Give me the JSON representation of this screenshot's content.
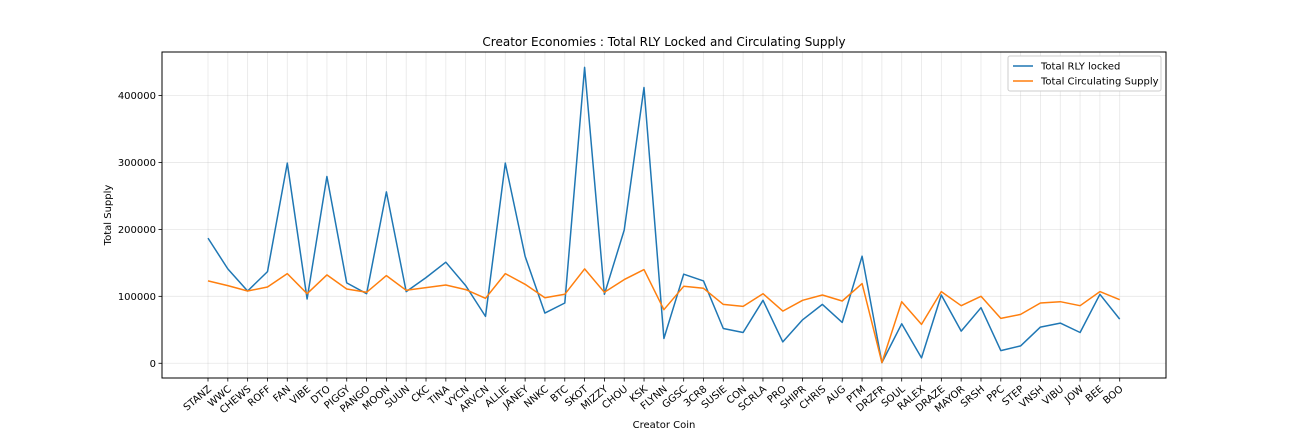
{
  "chart_data": {
    "type": "line",
    "title": "Creator Economies : Total RLY Locked and Circulating Supply",
    "xlabel": "Creator Coin",
    "ylabel": "Total Supply",
    "categories": [
      "STANZ",
      "WWC",
      "CHEWS",
      "ROFF",
      "FAN",
      "VIBE",
      "DTO",
      "PIGGY",
      "PANGO",
      "MOON",
      "SUUN",
      "CKC",
      "TINA",
      "VYCN",
      "ARVCN",
      "ALLIE",
      "JANEY",
      "NNKC",
      "BTC",
      "SKOT",
      "MIZZY",
      "CHOU",
      "KSK",
      "FLYNN",
      "GGSC",
      "3CR8",
      "SUSIE",
      "CON",
      "SCRLA",
      "PRO",
      "SHIPR",
      "CHRIS",
      "AUG",
      "PTM",
      "DRZFR",
      "SOUL",
      "RALEX",
      "DRAZE",
      "MAYOR",
      "SRSH",
      "PPC",
      "STEP",
      "VNSH",
      "VIBU",
      "JOW",
      "BEE",
      "BOO"
    ],
    "series": [
      {
        "name": "Total RLY locked",
        "color": "#1f77b4",
        "values": [
          187000,
          141000,
          108000,
          137000,
          299000,
          96000,
          279000,
          120000,
          104000,
          256000,
          107000,
          128000,
          151000,
          116000,
          70000,
          299000,
          160000,
          75000,
          90000,
          442000,
          103000,
          199000,
          412000,
          37000,
          133000,
          123000,
          52000,
          46000,
          94000,
          32000,
          65000,
          88000,
          61000,
          160000,
          1000,
          59000,
          8000,
          102000,
          48000,
          83000,
          19000,
          26000,
          54000,
          60000,
          46000,
          103000,
          66000
        ]
      },
      {
        "name": "Total Circulating Supply",
        "color": "#ff7f0e",
        "values": [
          123000,
          116000,
          108000,
          114000,
          134000,
          104000,
          132000,
          111000,
          106000,
          131000,
          109000,
          113000,
          117000,
          110000,
          97000,
          134000,
          118000,
          98000,
          103000,
          141000,
          106000,
          125000,
          140000,
          80000,
          115000,
          112000,
          88000,
          85000,
          104000,
          78000,
          94000,
          102000,
          93000,
          119000,
          1000,
          92000,
          58000,
          107000,
          86000,
          100000,
          67000,
          73000,
          90000,
          92000,
          86000,
          107000,
          95000
        ]
      }
    ],
    "ylim": [
      -22000,
      465000
    ],
    "yticks": [
      "0",
      "100000",
      "200000",
      "300000",
      "400000"
    ],
    "grid": true,
    "legend": "top-right"
  }
}
